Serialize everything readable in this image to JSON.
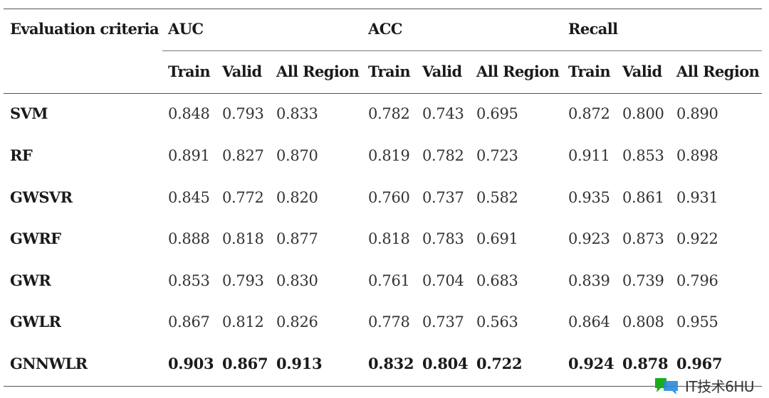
{
  "table": {
    "header_label": "Evaluation criteria",
    "groups": [
      "AUC",
      "ACC",
      "Recall"
    ],
    "subcolumns": [
      "Train",
      "Valid",
      "All Region",
      "Train",
      "Valid",
      "All Region",
      "Train",
      "Valid",
      "All Region"
    ],
    "rows": [
      {
        "label": "SVM",
        "values": [
          "0.848",
          "0.793",
          "0.833",
          "0.782",
          "0.743",
          "0.695",
          "0.872",
          "0.800",
          "0.890"
        ],
        "bold": false
      },
      {
        "label": "RF",
        "values": [
          "0.891",
          "0.827",
          "0.870",
          "0.819",
          "0.782",
          "0.723",
          "0.911",
          "0.853",
          "0.898"
        ],
        "bold": false
      },
      {
        "label": "GWSVR",
        "values": [
          "0.845",
          "0.772",
          "0.820",
          "0.760",
          "0.737",
          "0.582",
          "0.935",
          "0.861",
          "0.931"
        ],
        "bold": false
      },
      {
        "label": "GWRF",
        "values": [
          "0.888",
          "0.818",
          "0.877",
          "0.818",
          "0.783",
          "0.691",
          "0.923",
          "0.873",
          "0.922"
        ],
        "bold": false
      },
      {
        "label": "GWR",
        "values": [
          "0.853",
          "0.793",
          "0.830",
          "0.761",
          "0.704",
          "0.683",
          "0.839",
          "0.739",
          "0.796"
        ],
        "bold": false
      },
      {
        "label": "GWLR",
        "values": [
          "0.867",
          "0.812",
          "0.826",
          "0.778",
          "0.737",
          "0.563",
          "0.864",
          "0.808",
          "0.955"
        ],
        "bold": false
      },
      {
        "label": "GNNWLR",
        "values": [
          "0.903",
          "0.867",
          "0.913",
          "0.832",
          "0.804",
          "0.722",
          "0.924",
          "0.878",
          "0.967"
        ],
        "bold": true
      }
    ]
  },
  "watermark": {
    "text": "IT技术6HU",
    "icon": "chat-bubble-logo-icon",
    "colors": [
      "#1aad19",
      "#2b8ad8"
    ]
  }
}
